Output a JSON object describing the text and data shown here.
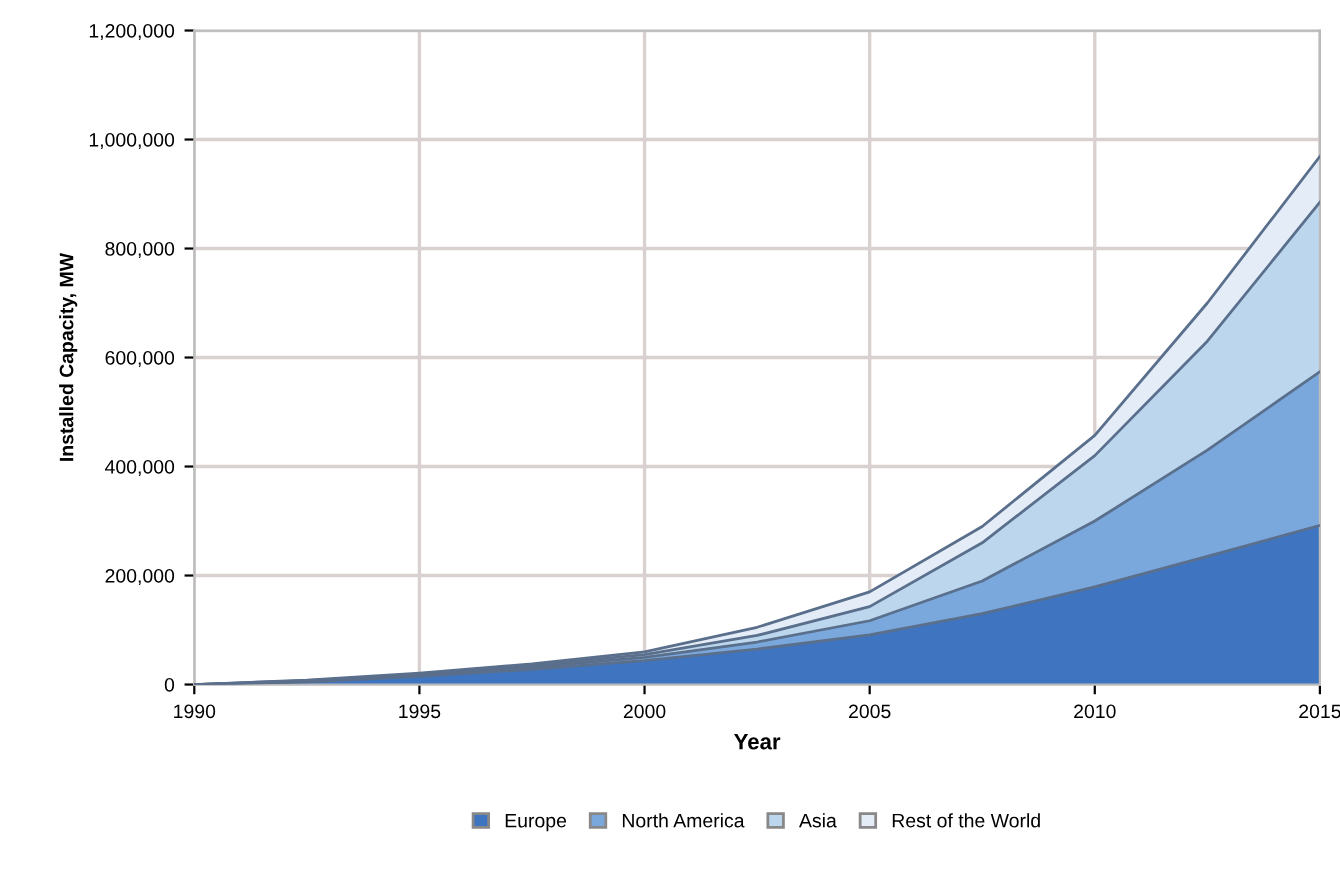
{
  "chart_data": {
    "type": "area",
    "stacked": true,
    "xlabel": "Year",
    "ylabel": "Installed Capacity, MW",
    "x": [
      1990,
      1992.5,
      1995,
      1997.5,
      2000,
      2002.5,
      2005,
      2007.5,
      2010,
      2012.5,
      2015
    ],
    "xlim": [
      1990,
      2015
    ],
    "xticks": [
      1990,
      1995,
      2000,
      2005,
      2010,
      2015
    ],
    "ylim": [
      0,
      1200000
    ],
    "yticks": [
      {
        "value": 0,
        "label": "0"
      },
      {
        "value": 200000,
        "label": "200,000"
      },
      {
        "value": 400000,
        "label": "400,000"
      },
      {
        "value": 600000,
        "label": "600,000"
      },
      {
        "value": 800000,
        "label": "800,000"
      },
      {
        "value": 1000000,
        "label": "1,000,000"
      },
      {
        "value": 1200000,
        "label": "1,200,000"
      }
    ],
    "grid": true,
    "legend": "bottom",
    "series": [
      {
        "name": "Europe",
        "color": "#3f74c0",
        "values": [
          0,
          5000,
          15000,
          28000,
          44000,
          65000,
          91000,
          130000,
          179000,
          235000,
          292000
        ]
      },
      {
        "name": "North America",
        "color": "#7aa7dc",
        "values": [
          0,
          1000,
          2000,
          4000,
          6000,
          13000,
          26000,
          60000,
          121000,
          195000,
          282000
        ]
      },
      {
        "name": "Asia",
        "color": "#bcd6ee",
        "values": [
          0,
          1000,
          2000,
          3000,
          5000,
          12000,
          26000,
          70000,
          120000,
          200000,
          311000
        ]
      },
      {
        "name": "Rest of the World",
        "color": "#e3ecf7",
        "values": [
          0,
          1000,
          2000,
          3000,
          5000,
          15000,
          27000,
          30000,
          37000,
          70000,
          84000
        ]
      }
    ]
  }
}
